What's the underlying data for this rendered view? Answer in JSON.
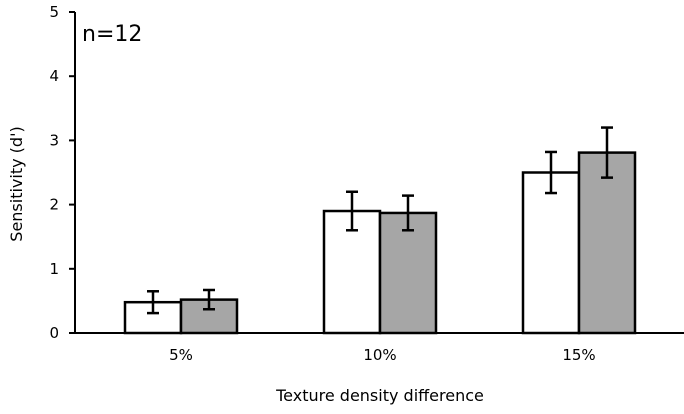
{
  "chart_data": {
    "type": "bar",
    "categories": [
      "5%",
      "10%",
      "15%"
    ],
    "series": [
      {
        "values": [
          0.48,
          1.9,
          2.5
        ],
        "errors": [
          0.17,
          0.3,
          0.32
        ],
        "color": "#ffffff"
      },
      {
        "values": [
          0.52,
          1.87,
          2.81
        ],
        "errors": [
          0.15,
          0.27,
          0.39
        ],
        "color": "#a6a6a6"
      }
    ],
    "xlabel": "Texture density difference",
    "ylabel": "Sensitivity (d')",
    "ylim": [
      0,
      5
    ],
    "yticks": [
      0,
      1,
      2,
      3,
      4,
      5
    ],
    "annotation": "n=12",
    "grid": false,
    "legend": "none"
  }
}
